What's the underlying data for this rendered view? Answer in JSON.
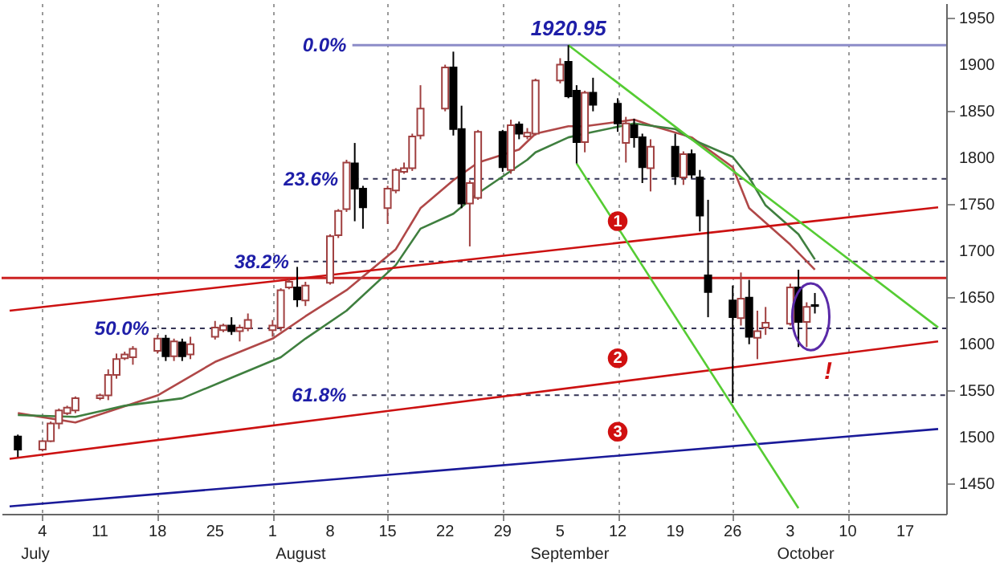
{
  "chart_data": {
    "type": "candlestick",
    "xlim": [
      "--06-30",
      "--10-21"
    ],
    "xticks": [
      {
        "value": "--07-04",
        "label": "4"
      },
      {
        "value": "--07-11",
        "label": "11"
      },
      {
        "value": "--07-18",
        "label": "18"
      },
      {
        "value": "--07-25",
        "label": "25"
      },
      {
        "value": "--08-01",
        "label": "1"
      },
      {
        "value": "--08-08",
        "label": "8"
      },
      {
        "value": "--08-15",
        "label": "15"
      },
      {
        "value": "--08-22",
        "label": "22"
      },
      {
        "value": "--08-29",
        "label": "29"
      },
      {
        "value": "--09-05",
        "label": "5"
      },
      {
        "value": "--09-12",
        "label": "12"
      },
      {
        "value": "--09-19",
        "label": "19"
      },
      {
        "value": "--09-26",
        "label": "26"
      },
      {
        "value": "--10-03",
        "label": "3"
      },
      {
        "value": "--10-10",
        "label": "10"
      },
      {
        "value": "--10-17",
        "label": "17"
      }
    ],
    "ylim": [
      1418,
      1966
    ],
    "yticks": [
      1450,
      1500,
      1550,
      1600,
      1650,
      1700,
      1750,
      1800,
      1850,
      1900,
      1950
    ],
    "grid": "x",
    "series": [
      {
        "x": [
          "--07-01",
          "--07-04",
          "--07-05",
          "--07-06",
          "--07-07",
          "--07-08",
          "--07-11",
          "--07-12",
          "--07-13",
          "--07-14",
          "--07-15",
          "--07-18",
          "--07-19",
          "--07-20",
          "--07-21",
          "--07-22",
          "--07-25",
          "--07-26",
          "--07-27",
          "--07-28",
          "--07-29",
          "--08-01",
          "--08-02",
          "--08-03",
          "--08-04",
          "--08-05",
          "--08-08",
          "--08-09",
          "--08-10",
          "--08-11",
          "--08-12",
          "--08-15",
          "--08-16",
          "--08-17",
          "--08-18",
          "--08-19",
          "--08-22",
          "--08-23",
          "--08-24",
          "--08-25",
          "--08-26",
          "--08-29",
          "--08-30",
          "--08-31",
          "--09-01",
          "--09-02",
          "--09-05",
          "--09-06",
          "--09-07",
          "--09-08",
          "--09-09",
          "--09-12",
          "--09-13",
          "--09-14",
          "--09-15",
          "--09-16",
          "--09-19",
          "--09-20",
          "--09-21",
          "--09-22",
          "--09-23",
          "--09-26",
          "--09-27",
          "--09-28",
          "--09-29",
          "--09-30",
          "--10-03",
          "--10-04",
          "--10-05",
          "--10-06"
        ],
        "ohlc": [
          [
            1501,
            1503,
            1479,
            1487
          ],
          [
            1487,
            1497,
            1485,
            1496
          ],
          [
            1496,
            1517,
            1495,
            1515
          ],
          [
            1515,
            1531,
            1509,
            1529
          ],
          [
            1526,
            1534,
            1524,
            1532
          ],
          [
            1529,
            1544,
            1526,
            1542
          ],
          [
            1542,
            1547,
            1540,
            1545
          ],
          [
            1545,
            1573,
            1540,
            1567
          ],
          [
            1567,
            1590,
            1563,
            1584
          ],
          [
            1585,
            1592,
            1583,
            1589
          ],
          [
            1586,
            1598,
            1578,
            1595
          ],
          [
            1593,
            1610,
            1590,
            1606
          ],
          [
            1606,
            1610,
            1582,
            1587
          ],
          [
            1587,
            1606,
            1582,
            1603
          ],
          [
            1602,
            1606,
            1582,
            1587
          ],
          [
            1589,
            1608,
            1584,
            1600
          ],
          [
            1608,
            1625,
            1605,
            1618
          ],
          [
            1615,
            1622,
            1613,
            1620
          ],
          [
            1620,
            1629,
            1610,
            1614
          ],
          [
            1614,
            1621,
            1603,
            1618
          ],
          [
            1617,
            1633,
            1614,
            1626
          ],
          [
            1615,
            1626,
            1608,
            1620
          ],
          [
            1618,
            1660,
            1614,
            1658
          ],
          [
            1661,
            1670,
            1659,
            1667
          ],
          [
            1661,
            1683,
            1640,
            1648
          ],
          [
            1647,
            1667,
            1641,
            1663
          ],
          [
            1666,
            1718,
            1664,
            1716
          ],
          [
            1717,
            1745,
            1714,
            1743
          ],
          [
            1745,
            1798,
            1742,
            1795
          ],
          [
            1794,
            1816,
            1732,
            1767
          ],
          [
            1767,
            1770,
            1724,
            1747
          ],
          [
            1746,
            1770,
            1729,
            1767
          ],
          [
            1765,
            1789,
            1762,
            1787
          ],
          [
            1785,
            1795,
            1783,
            1789
          ],
          [
            1789,
            1826,
            1786,
            1823
          ],
          [
            1824,
            1878,
            1820,
            1853
          ],
          [
            1853,
            1900,
            1850,
            1897
          ],
          [
            1897,
            1914,
            1824,
            1831
          ],
          [
            1831,
            1856,
            1746,
            1751
          ],
          [
            1751,
            1776,
            1705,
            1773
          ],
          [
            1757,
            1830,
            1755,
            1828
          ],
          [
            1828,
            1830,
            1785,
            1790
          ],
          [
            1787,
            1841,
            1783,
            1835
          ],
          [
            1836,
            1839,
            1820,
            1826
          ],
          [
            1823,
            1832,
            1820,
            1827
          ],
          [
            1826,
            1885,
            1824,
            1883
          ],
          [
            1883,
            1907,
            1880,
            1900
          ],
          [
            1903,
            1920.95,
            1864,
            1866
          ],
          [
            1872,
            1878,
            1794,
            1817
          ],
          [
            1817,
            1872,
            1806,
            1870
          ],
          [
            1870,
            1886,
            1850,
            1857
          ],
          [
            1858,
            1864,
            1828,
            1837
          ],
          [
            1816,
            1844,
            1795,
            1837
          ],
          [
            1835,
            1842,
            1811,
            1822
          ],
          [
            1822,
            1826,
            1773,
            1790
          ],
          [
            1789,
            1820,
            1764,
            1812
          ],
          [
            1812,
            1826,
            1771,
            1780
          ],
          [
            1779,
            1807,
            1771,
            1804
          ],
          [
            1804,
            1809,
            1778,
            1782
          ],
          [
            1779,
            1787,
            1721,
            1738
          ],
          [
            1674,
            1755,
            1629,
            1656
          ],
          [
            1647,
            1663,
            1537,
            1629
          ],
          [
            1628,
            1677,
            1620,
            1649
          ],
          [
            1650,
            1669,
            1600,
            1608
          ],
          [
            1607,
            1636,
            1584,
            1614
          ],
          [
            1618,
            1640,
            1610,
            1623
          ],
          [
            1622,
            1665,
            1620,
            1661
          ],
          [
            1661,
            1680,
            1597,
            1624
          ],
          [
            1624,
            1645,
            1597,
            1640
          ],
          [
            1642,
            1655,
            1633,
            1641
          ]
        ],
        "colors": [
          "#000000",
          "#a04040",
          "#a04040",
          "#a04040",
          "#a04040",
          "#a04040",
          "#a04040",
          "#a04040",
          "#a04040",
          "#a04040",
          "#a04040",
          "#a04040",
          "#000000",
          "#a04040",
          "#000000",
          "#a04040",
          "#a04040",
          "#a04040",
          "#000000",
          "#a04040",
          "#a04040",
          "#a04040",
          "#a04040",
          "#a04040",
          "#000000",
          "#a04040",
          "#a04040",
          "#a04040",
          "#a04040",
          "#000000",
          "#000000",
          "#a04040",
          "#a04040",
          "#a04040",
          "#a04040",
          "#a04040",
          "#a04040",
          "#000000",
          "#000000",
          "#a04040",
          "#a04040",
          "#000000",
          "#a04040",
          "#000000",
          "#a04040",
          "#a04040",
          "#a04040",
          "#000000",
          "#000000",
          "#a04040",
          "#000000",
          "#000000",
          "#a04040",
          "#000000",
          "#000000",
          "#a04040",
          "#000000",
          "#a04040",
          "#000000",
          "#000000",
          "#000000",
          "#000000",
          "#a04040",
          "#000000",
          "#a04040",
          "#a04040",
          "#a04040",
          "#000000",
          "#a04040",
          "#000000"
        ]
      },
      {
        "type": "line",
        "color": "#b04848",
        "x": [
          "--07-01",
          "--07-08",
          "--07-18",
          "--07-25",
          "--08-01",
          "--08-05",
          "--08-10",
          "--08-16",
          "--08-19",
          "--08-23",
          "--08-26",
          "--08-31",
          "--09-02",
          "--09-06",
          "--09-08",
          "--09-14",
          "--09-16",
          "--09-21",
          "--09-26",
          "--09-28",
          "--10-03",
          "--10-06"
        ],
        "values": [
          1526,
          1516,
          1545,
          1581,
          1606,
          1630,
          1658,
          1702,
          1746,
          1776,
          1795,
          1809,
          1826,
          1834,
          1834,
          1841,
          1835,
          1822,
          1790,
          1746,
          1707,
          1680
        ]
      },
      {
        "type": "line",
        "color": "#3f7f3f",
        "x": [
          "--07-01",
          "--07-08",
          "--07-14",
          "--07-21",
          "--07-27",
          "--08-02",
          "--08-05",
          "--08-10",
          "--08-16",
          "--08-19",
          "--08-23",
          "--08-26",
          "--09-01",
          "--09-02",
          "--09-06",
          "--09-08",
          "--09-14",
          "--09-19",
          "--09-21",
          "--09-26",
          "--09-28",
          "--09-30",
          "--10-04",
          "--10-06"
        ],
        "values": [
          1524,
          1522,
          1534,
          1542,
          1564,
          1586,
          1606,
          1636,
          1685,
          1724,
          1740,
          1762,
          1798,
          1806,
          1822,
          1826,
          1837,
          1831,
          1820,
          1801,
          1779,
          1749,
          1718,
          1691
        ]
      },
      {
        "type": "line",
        "color": "#cc1111",
        "x": [
          "--06-30",
          "--10-21"
        ],
        "values": [
          1636,
          1747
        ]
      },
      {
        "type": "line",
        "color": "#cc1111",
        "x": [
          "--06-30",
          "--10-21"
        ],
        "values": [
          1477,
          1603
        ]
      },
      {
        "type": "line",
        "color": "#1a1a99",
        "x": [
          "--06-30",
          "--10-21"
        ],
        "values": [
          1426,
          1509
        ]
      },
      {
        "type": "line",
        "color": "#55cc33",
        "x": [
          "--09-06",
          "--10-21"
        ],
        "values": [
          1921,
          1618
        ]
      },
      {
        "type": "line",
        "color": "#55cc33",
        "x": [
          "--09-07",
          "--10-04"
        ],
        "values": [
          1794,
          1424
        ]
      }
    ],
    "ref_lines": [
      {
        "axis": "y",
        "value": 1920.95,
        "color": "#8c8cc8",
        "line_style": "solid"
      },
      {
        "axis": "y",
        "value": 1777.5,
        "color": "#333355",
        "line_style": "dashed"
      },
      {
        "axis": "y",
        "value": 1688.7,
        "color": "#333355",
        "line_style": "dashed"
      },
      {
        "axis": "y",
        "value": 1617,
        "color": "#333355",
        "line_style": "dashed"
      },
      {
        "axis": "y",
        "value": 1545.2,
        "color": "#333355",
        "line_style": "dashed"
      },
      {
        "axis": "y",
        "value": 1671,
        "color": "#cc2222",
        "line_style": "solid"
      }
    ],
    "annotations": [
      "July",
      "August",
      "September",
      "October",
      {
        "text": "0.0%",
        "x": "--08-10",
        "y": 1920.95
      },
      {
        "text": "23.6%",
        "x": "--08-09",
        "y": 1777.5
      },
      {
        "text": "38.2%",
        "x": "--08-03",
        "y": 1688.7
      },
      {
        "text": "50.0%",
        "x": "--07-17",
        "y": 1617
      },
      {
        "text": "61.8%",
        "x": "--08-10",
        "y": 1545.2
      },
      {
        "text": "1920.95",
        "x": "--09-06",
        "y": 1920.95
      },
      {
        "text": "1",
        "x": "--09-12",
        "y": 1732
      },
      {
        "text": "2",
        "x": "--09-12",
        "y": 1585
      },
      {
        "text": "3",
        "x": "--09-12",
        "y": 1506
      },
      "!"
    ]
  }
}
